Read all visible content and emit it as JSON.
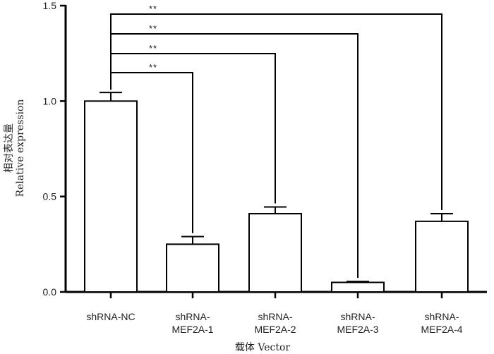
{
  "chart_data": {
    "type": "bar",
    "title": "",
    "categories": [
      [
        "shRNA-NC"
      ],
      [
        "shRNA-",
        "MEF2A-1"
      ],
      [
        "shRNA-",
        "MEF2A-2"
      ],
      [
        "shRNA-",
        "MEF2A-3"
      ],
      [
        "shRNA-",
        "MEF2A-4"
      ]
    ],
    "values": [
      1.0,
      0.25,
      0.41,
      0.05,
      0.37
    ],
    "errors": [
      0.045,
      0.04,
      0.035,
      0.005,
      0.04
    ],
    "ylim": [
      0,
      1.5
    ],
    "yticks": [
      "0.0",
      "0.5",
      "1.0",
      "1.5"
    ],
    "ytick_values": [
      0,
      0.5,
      1.0,
      1.5
    ],
    "ylabel_cn": "相对表达量",
    "ylabel_en": "Relative expression",
    "xlabel": "载体  Vector",
    "significance": [
      {
        "from": 0,
        "to": 1,
        "label": "**"
      },
      {
        "from": 0,
        "to": 2,
        "label": "**"
      },
      {
        "from": 0,
        "to": 3,
        "label": "**"
      },
      {
        "from": 0,
        "to": 4,
        "label": "**"
      }
    ]
  }
}
